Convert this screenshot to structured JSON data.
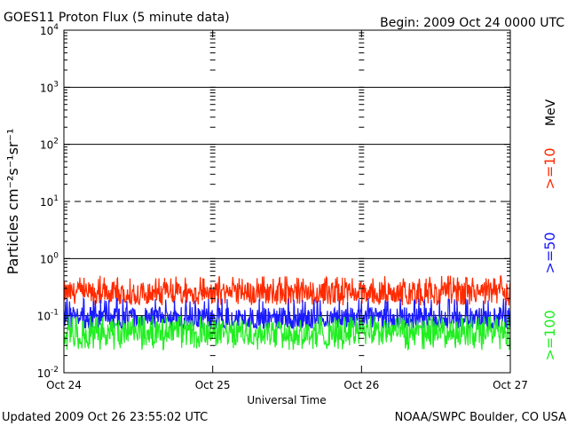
{
  "chart_data": {
    "type": "line",
    "title": "GOES11 Proton Flux (5 minute data)",
    "begin": "Begin: 2009 Oct 24 0000 UTC",
    "xlabel": "Universal Time",
    "ylabel": "Particles cm⁻²s⁻¹sr⁻¹",
    "x_tick_labels": [
      "Oct 24",
      "Oct 25",
      "Oct 26",
      "Oct 27"
    ],
    "xlim_days": [
      0,
      3
    ],
    "yscale": "log",
    "ylim": [
      0.01,
      10000
    ],
    "y_tick_labels": [
      {
        "base": "10",
        "exp": "-2"
      },
      {
        "base": "10",
        "exp": "-1"
      },
      {
        "base": "10",
        "exp": "0"
      },
      {
        "base": "10",
        "exp": "1"
      },
      {
        "base": "10",
        "exp": "2"
      },
      {
        "base": "10",
        "exp": "3"
      },
      {
        "base": "10",
        "exp": "4"
      }
    ],
    "unit_label": "MeV",
    "series": [
      {
        "name": ">=10",
        "color": "#ff2a00",
        "typical_value": 0.25,
        "range": [
          0.15,
          0.5
        ]
      },
      {
        "name": ">=50",
        "color": "#1a1aff",
        "typical_value": 0.09,
        "range": [
          0.06,
          0.2
        ]
      },
      {
        "name": ">=100",
        "color": "#22ee22",
        "typical_value": 0.05,
        "range": [
          0.025,
          0.1
        ]
      }
    ],
    "dashed_reference_level": 10,
    "grid": "horizontal at each decade"
  },
  "footer": {
    "updated": "Updated 2009 Oct 26 23:55:02 UTC",
    "source": "NOAA/SWPC Boulder, CO USA"
  }
}
